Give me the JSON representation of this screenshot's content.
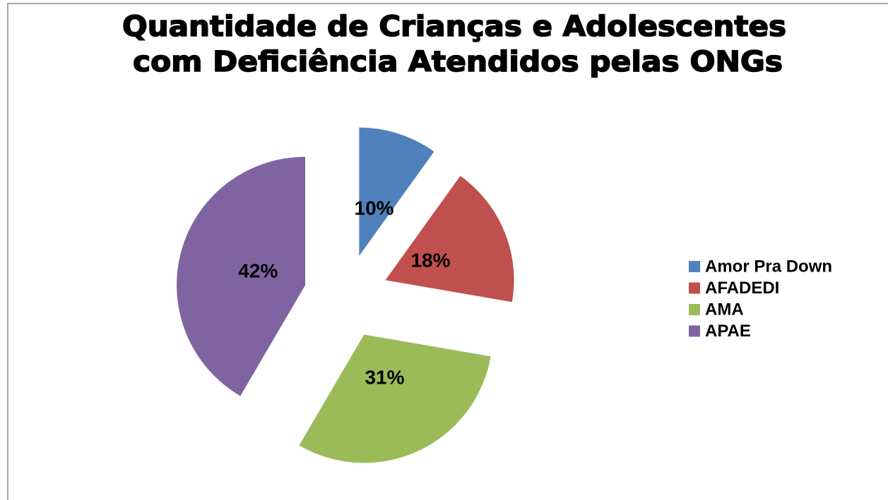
{
  "chart_data": {
    "type": "pie",
    "title": [
      "Quantidade de Crianças e Adolescentes",
      "com Deficiência Atendidos pelas ONGs"
    ],
    "categories": [
      "Amor Pra Down",
      "AFADEDI",
      "AMA",
      "APAE"
    ],
    "values": [
      10,
      18,
      31,
      42
    ],
    "value_labels": [
      "10%",
      "18%",
      "31%",
      "42%"
    ],
    "colors": [
      "#4f81bd",
      "#c0504d",
      "#9bbb59",
      "#8064a2"
    ],
    "legend": "right"
  }
}
